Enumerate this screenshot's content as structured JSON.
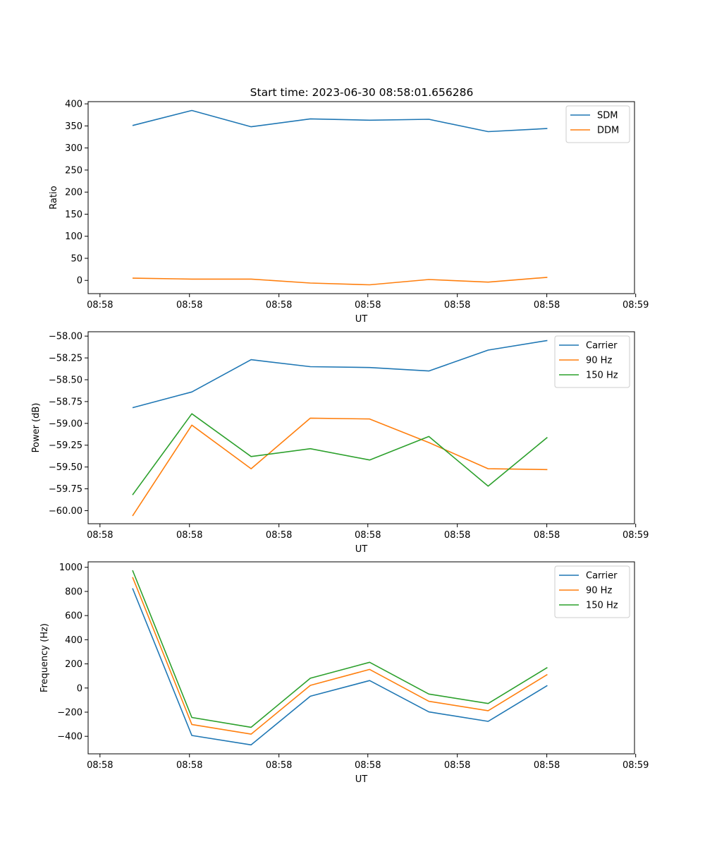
{
  "figure": {
    "title": "Start time: 2023-06-30 08:58:01.656286"
  },
  "chart_data": [
    {
      "type": "line",
      "title": "Start time: 2023-06-30 08:58:01.656286",
      "xlabel": "UT",
      "ylabel": "Ratio",
      "x": [
        1,
        2,
        3,
        4,
        5,
        6,
        7,
        8
      ],
      "xlim": [
        0.25,
        9.47
      ],
      "x_ticks": [
        0.45,
        1.96,
        3.47,
        4.97,
        6.48,
        7.99,
        9.49
      ],
      "x_tick_labels": [
        "08:58",
        "08:58",
        "08:58",
        "08:58",
        "08:58",
        "08:58",
        "08:59"
      ],
      "ylim": [
        -30,
        405
      ],
      "y_ticks": [
        0,
        50,
        100,
        150,
        200,
        250,
        300,
        350,
        400
      ],
      "y_tick_labels": [
        "0",
        "50",
        "100",
        "150",
        "200",
        "250",
        "300",
        "350",
        "400"
      ],
      "legend": "top-right",
      "grid": false,
      "series": [
        {
          "name": "SDM",
          "color": "#1f77b4",
          "values": [
            351,
            385,
            348,
            366,
            363,
            365,
            337,
            344
          ]
        },
        {
          "name": "DDM",
          "color": "#ff7f0e",
          "values": [
            5,
            3,
            3,
            -6,
            -10,
            2,
            -4,
            7
          ]
        }
      ]
    },
    {
      "type": "line",
      "xlabel": "UT",
      "ylabel": "Power (dB)",
      "x": [
        1,
        2,
        3,
        4,
        5,
        6,
        7,
        8
      ],
      "xlim": [
        0.25,
        9.47
      ],
      "x_ticks": [
        0.45,
        1.96,
        3.47,
        4.97,
        6.48,
        7.99,
        9.49
      ],
      "x_tick_labels": [
        "08:58",
        "08:58",
        "08:58",
        "08:58",
        "08:58",
        "08:58",
        "08:59"
      ],
      "ylim": [
        -60.15,
        -57.95
      ],
      "y_ticks": [
        -60.0,
        -59.75,
        -59.5,
        -59.25,
        -59.0,
        -58.75,
        -58.5,
        -58.25,
        -58.0
      ],
      "y_tick_labels": [
        "−60.00",
        "−59.75",
        "−59.50",
        "−59.25",
        "−59.00",
        "−58.75",
        "−58.50",
        "−58.25",
        "−58.00"
      ],
      "legend": "top-right",
      "grid": false,
      "series": [
        {
          "name": "Carrier",
          "color": "#1f77b4",
          "values": [
            -58.82,
            -58.64,
            -58.27,
            -58.35,
            -58.36,
            -58.4,
            -58.16,
            -58.05
          ]
        },
        {
          "name": "90 Hz",
          "color": "#ff7f0e",
          "values": [
            -60.06,
            -59.02,
            -59.52,
            -58.94,
            -58.95,
            -59.22,
            -59.52,
            -59.53
          ]
        },
        {
          "name": "150 Hz",
          "color": "#2ca02c",
          "values": [
            -59.82,
            -58.89,
            -59.38,
            -59.29,
            -59.42,
            -59.15,
            -59.72,
            -59.16
          ]
        }
      ]
    },
    {
      "type": "line",
      "xlabel": "UT",
      "ylabel": "Frequency (Hz)",
      "x": [
        1,
        2,
        3,
        4,
        5,
        6,
        7,
        8
      ],
      "xlim": [
        0.25,
        9.47
      ],
      "x_ticks": [
        0.45,
        1.96,
        3.47,
        4.97,
        6.48,
        7.99,
        9.49
      ],
      "x_tick_labels": [
        "08:58",
        "08:58",
        "08:58",
        "08:58",
        "08:58",
        "08:58",
        "08:59"
      ],
      "ylim": [
        -545,
        1045
      ],
      "y_ticks": [
        -400,
        -200,
        0,
        200,
        400,
        600,
        800,
        1000
      ],
      "y_tick_labels": [
        "−400",
        "−200",
        "0",
        "200",
        "400",
        "600",
        "800",
        "1000"
      ],
      "legend": "top-right",
      "grid": false,
      "series": [
        {
          "name": "Carrier",
          "color": "#1f77b4",
          "values": [
            826,
            -393,
            -471,
            -68,
            62,
            -198,
            -276,
            21
          ]
        },
        {
          "name": "90 Hz",
          "color": "#ff7f0e",
          "values": [
            918,
            -302,
            -382,
            22,
            154,
            -110,
            -188,
            112
          ]
        },
        {
          "name": "150 Hz",
          "color": "#2ca02c",
          "values": [
            975,
            -244,
            -325,
            81,
            213,
            -50,
            -128,
            170
          ]
        }
      ]
    }
  ]
}
